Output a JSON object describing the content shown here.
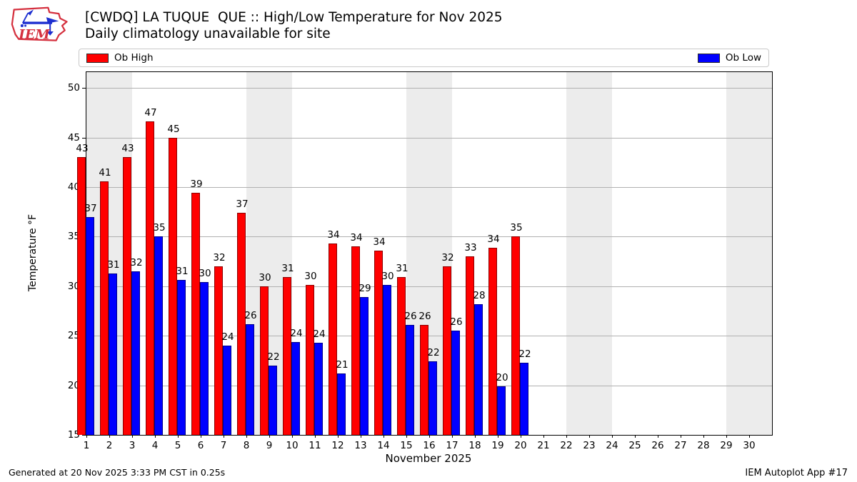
{
  "header": {
    "logo_text": "IEM",
    "title_line1": "[CWDQ] LA TUQUE  QUE :: High/Low Temperature for Nov 2025",
    "title_line2": "Daily climatology unavailable for site"
  },
  "legend": {
    "high_label": "Ob High",
    "low_label": "Ob Low",
    "high_color": "#ff0000",
    "low_color": "#0000ff"
  },
  "footer": {
    "left": "Generated at 20 Nov 2025 3:33 PM CST in 0.25s",
    "right": "IEM Autoplot App #17"
  },
  "chart_data": {
    "type": "bar",
    "title": "[CWDQ] LA TUQUE  QUE :: High/Low Temperature for Nov 2025",
    "subtitle": "Daily climatology unavailable for site",
    "xlabel": "November 2025",
    "ylabel": "Temperature °F",
    "xlim": [
      0.5,
      30.5
    ],
    "ylim": [
      15,
      51.6
    ],
    "yticks": [
      15,
      20,
      25,
      30,
      35,
      40,
      45,
      50
    ],
    "xticks": [
      1,
      2,
      3,
      4,
      5,
      6,
      7,
      8,
      9,
      10,
      11,
      12,
      13,
      14,
      15,
      16,
      17,
      18,
      19,
      20,
      21,
      22,
      23,
      24,
      25,
      26,
      27,
      28,
      29,
      30
    ],
    "grid": true,
    "grid_color": "#b0b0b0",
    "weekend_band_color": "#ececec",
    "weekend_bands": [
      [
        0.5,
        2.5
      ],
      [
        7.5,
        9.5
      ],
      [
        14.5,
        16.5
      ],
      [
        21.5,
        23.5
      ],
      [
        28.5,
        30.5
      ]
    ],
    "legend_position": "top-row",
    "categories": [
      1,
      2,
      3,
      4,
      5,
      6,
      7,
      8,
      9,
      10,
      11,
      12,
      13,
      14,
      15,
      16,
      17,
      18,
      19,
      20
    ],
    "series": [
      {
        "name": "Ob High",
        "color": "#ff0000",
        "values": [
          43,
          41,
          43,
          47,
          45,
          39,
          32,
          37,
          30,
          31,
          30,
          34,
          34,
          34,
          31,
          26,
          32,
          33,
          34,
          35
        ],
        "bar_values": [
          43.0,
          40.6,
          43.0,
          46.6,
          45.0,
          39.4,
          32.0,
          37.4,
          30.0,
          30.9,
          30.1,
          34.3,
          34.0,
          33.6,
          30.9,
          26.1,
          32.0,
          33.0,
          33.9,
          35.0
        ]
      },
      {
        "name": "Ob Low",
        "color": "#0000ff",
        "values": [
          37,
          31,
          32,
          35,
          31,
          30,
          24,
          26,
          22,
          24,
          24,
          21,
          29,
          30,
          26,
          22,
          26,
          28,
          20,
          22
        ],
        "bar_values": [
          37.0,
          31.3,
          31.5,
          35.0,
          30.6,
          30.4,
          24.0,
          26.2,
          22.0,
          24.4,
          24.3,
          21.2,
          28.9,
          30.1,
          26.1,
          22.4,
          25.5,
          28.2,
          19.9,
          22.3
        ]
      }
    ]
  }
}
